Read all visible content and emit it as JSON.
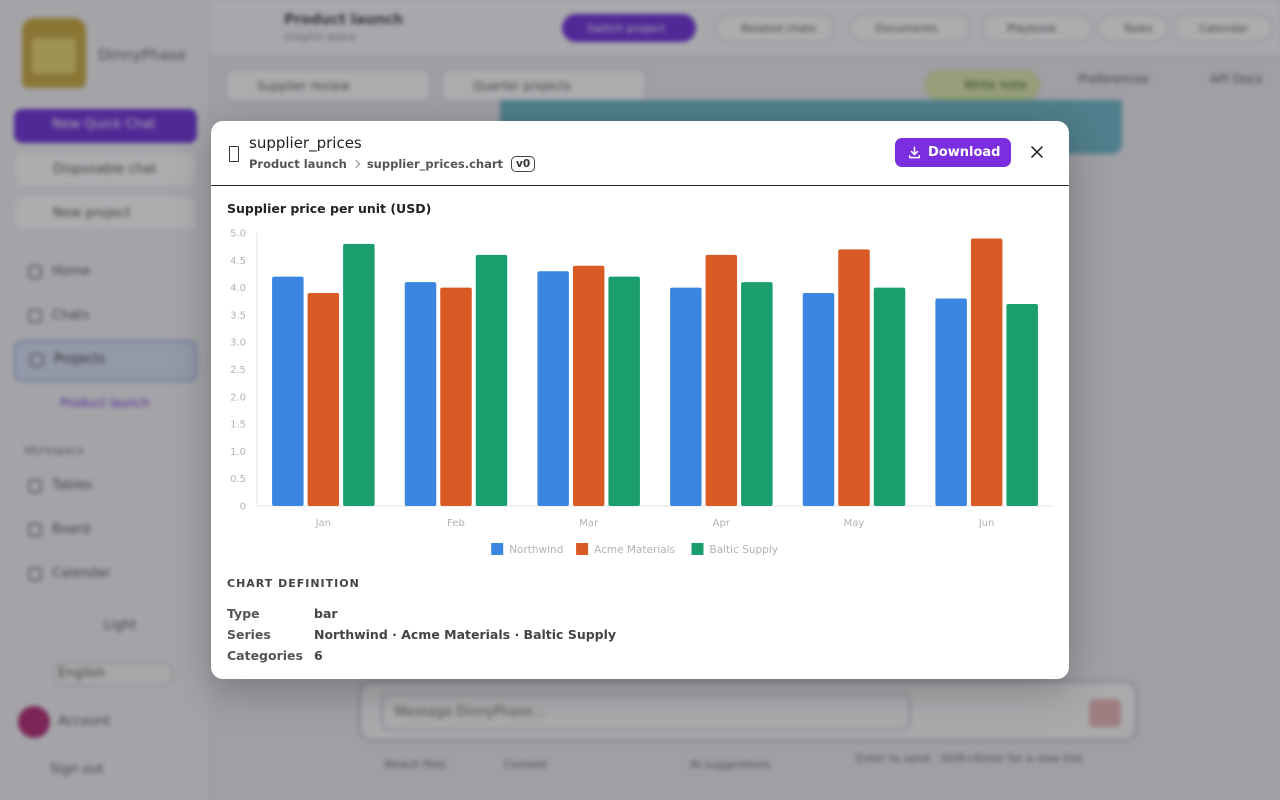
{
  "background": {
    "app_name": "DinnyPhase",
    "new_chat": "New Quick Chat",
    "sidebar_items": [
      "Disposable chat",
      "New project",
      "Home",
      "Chats",
      "Projects",
      "Tables",
      "Board",
      "Calendar"
    ],
    "sidebar_sub": "Product launch",
    "sidebar_heading": "Workspace",
    "theme_label": "Light",
    "language": "English",
    "account": "Account",
    "signout": "Sign out",
    "top_title": "Product launch",
    "top_sub": "Insights space",
    "top_pills": [
      "Switch project",
      "Related chats",
      "Documents",
      "Playbook",
      "Tasks",
      "Calendar"
    ],
    "sub_boxes": [
      "Supplier review",
      "Quarter projects"
    ],
    "sub_green": "Write note",
    "sub_buttons": [
      "Preferences",
      "API Docs"
    ],
    "composer_placeholder": "Message DinnyPhase...",
    "below_composer": [
      "Attach files",
      "Context",
      "AI suggestions"
    ],
    "disclaimer": "Enter to send · Shift+Enter for a new line"
  },
  "modal": {
    "title": "supplier_prices",
    "crumbs": [
      "Product launch",
      "supplier_prices.chart"
    ],
    "version": "v0",
    "download_label": "Download",
    "definition_heading": "CHART DEFINITION",
    "definition": [
      {
        "key": "Type",
        "value": "bar"
      },
      {
        "key": "Series",
        "value": "Northwind · Acme Materials · Baltic Supply"
      },
      {
        "key": "Categories",
        "value": "6"
      }
    ]
  },
  "chart_data": {
    "type": "bar",
    "title": "Supplier price per unit (USD)",
    "categories": [
      "Jan",
      "Feb",
      "Mar",
      "Apr",
      "May",
      "Jun"
    ],
    "series": [
      {
        "name": "Northwind",
        "color": "#3b86e0",
        "values": [
          4.2,
          4.1,
          4.3,
          4.0,
          3.9,
          3.8
        ]
      },
      {
        "name": "Acme Materials",
        "color": "#d95a25",
        "values": [
          3.9,
          4.0,
          4.4,
          4.6,
          4.7,
          4.9
        ]
      },
      {
        "name": "Baltic Supply",
        "color": "#1a9e6e",
        "values": [
          4.8,
          4.6,
          4.2,
          4.1,
          4.0,
          3.7
        ]
      }
    ],
    "ylim": [
      0,
      5
    ],
    "yticks": [
      "0",
      "0.5",
      "1.0",
      "1.5",
      "2.0",
      "2.5",
      "3.0",
      "3.5",
      "4.0",
      "4.5",
      "5.0"
    ],
    "legend": "bottom",
    "grid": false
  }
}
